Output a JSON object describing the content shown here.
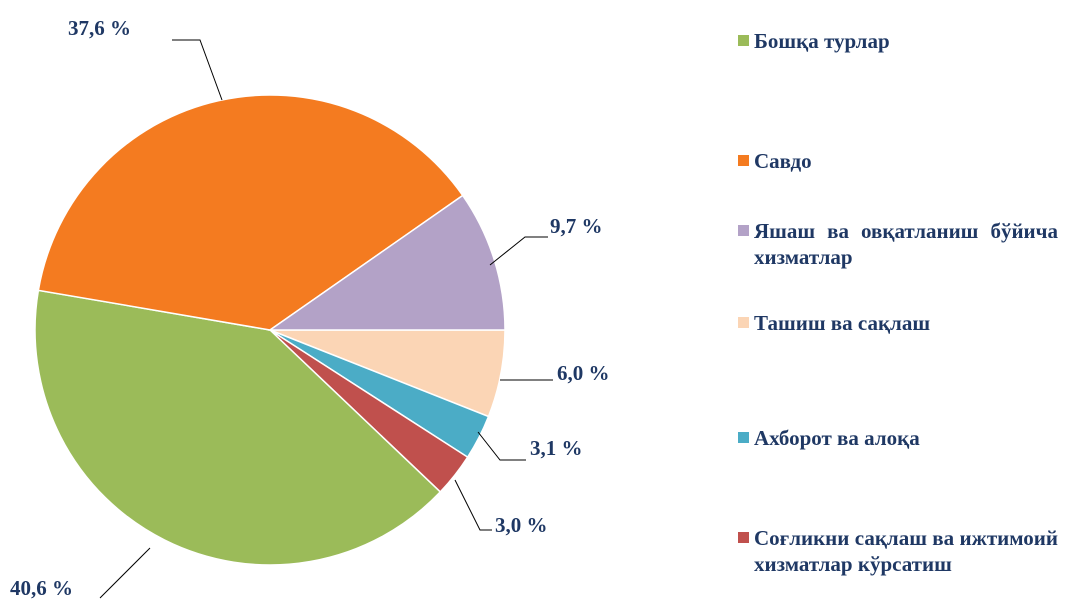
{
  "chart_data": {
    "type": "pie",
    "categories": [
      "Бошқа турлар",
      "Савдо",
      "Яшаш ва овқатланиш бўйича хизматлар",
      "Ташиш ва сақлаш",
      "Ахборот ва алоқа",
      "Соғликни сақлаш ва ижтимоий хизматлар кўрсатиш"
    ],
    "values": [
      40.6,
      37.6,
      9.7,
      6.0,
      3.1,
      3.0
    ],
    "value_labels": [
      "40,6 %",
      "37,6 %",
      "9,7 %",
      "6,0 %",
      "3,1 %",
      "3,0 %"
    ],
    "colors": [
      "#9bbb59",
      "#f47b20",
      "#b3a2c7",
      "#fbd5b5",
      "#4bacc6",
      "#c0504d"
    ],
    "legend": "right"
  }
}
